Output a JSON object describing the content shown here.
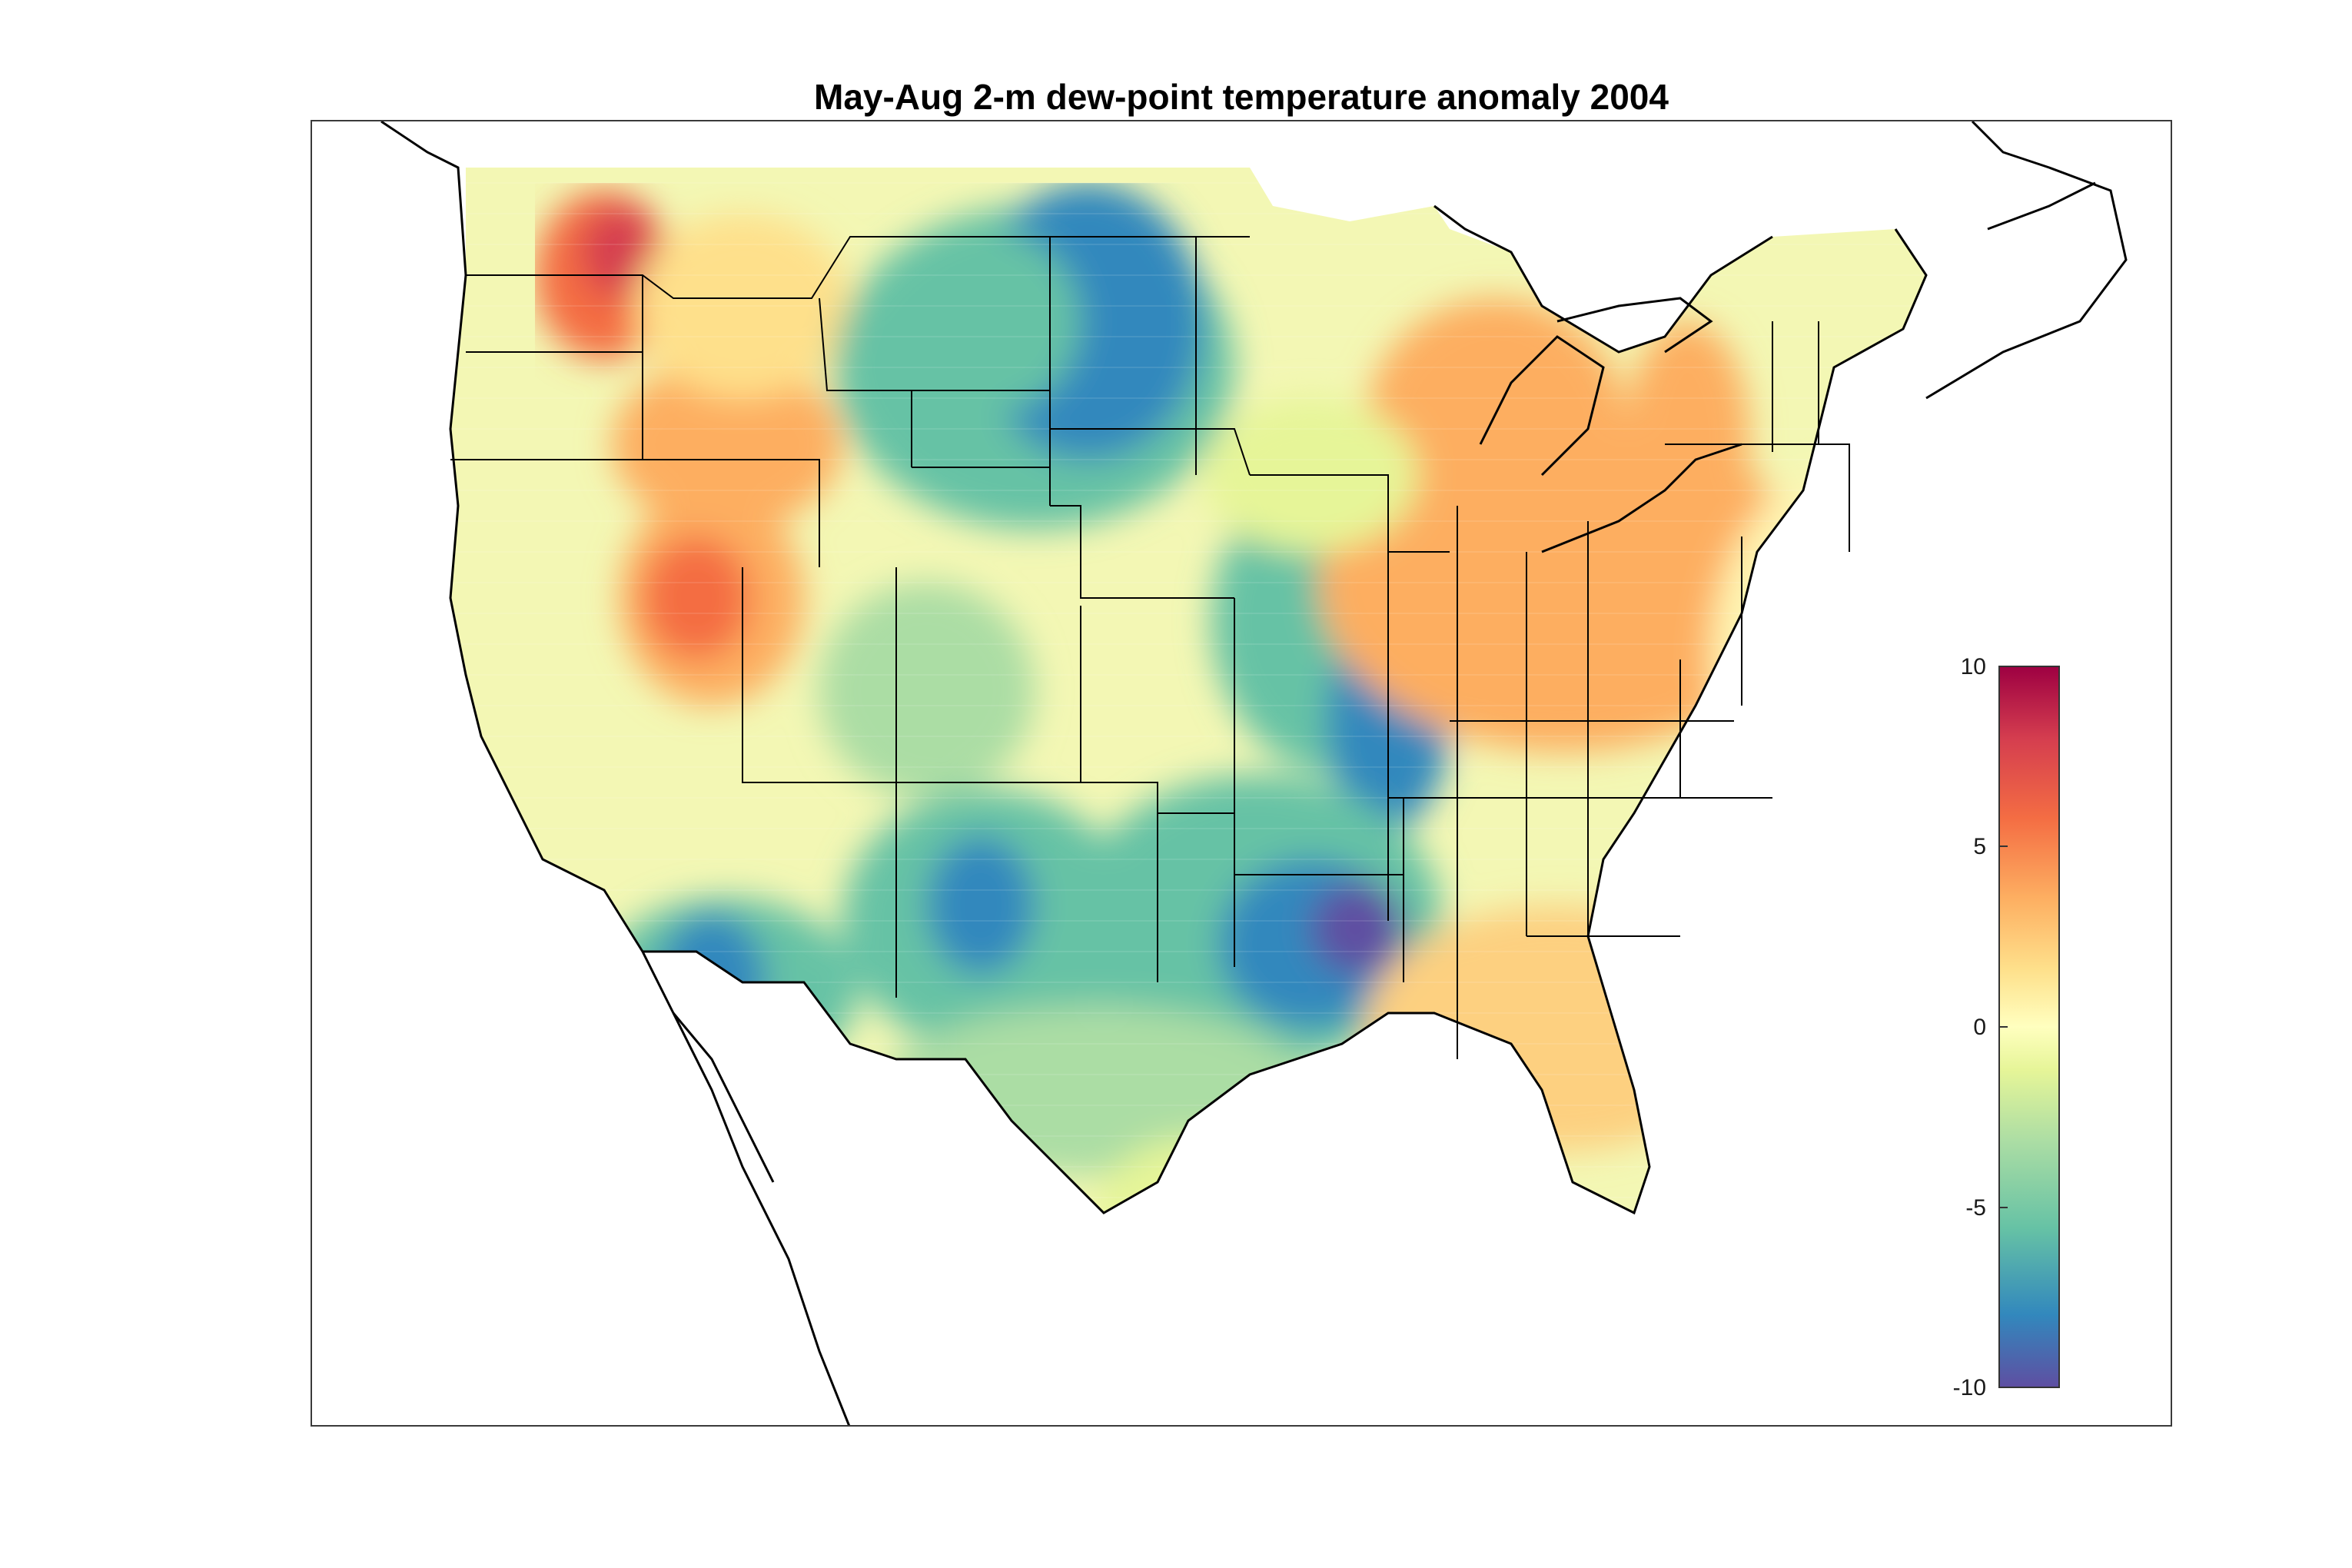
{
  "figure": {
    "title": "May-Aug 2-m dew-point temperature anomaly 2004"
  },
  "colorbar": {
    "min": -10,
    "max": 10,
    "ticks": [
      "10",
      "5",
      "0",
      "-5",
      "-10"
    ],
    "colormap": "spectral",
    "colors": [
      "#5e4fa2",
      "#3288bd",
      "#66c2a5",
      "#abdda4",
      "#e6f598",
      "#ffffbf",
      "#fee08b",
      "#fdae61",
      "#f46d43",
      "#d53e4f",
      "#9e0142"
    ]
  },
  "map": {
    "region": "contiguous United States",
    "projection": "conic",
    "overlays": [
      "coastlines",
      "state boundaries"
    ],
    "anomaly_regions": [
      {
        "area": "north-central plains (Dakotas, eastern Montana)",
        "anomaly": -8
      },
      {
        "area": "Oklahoma / north Texas",
        "anomaly": -9
      },
      {
        "area": "New Mexico / Arizona border",
        "anomaly": -7
      },
      {
        "area": "southern Arizona / California border",
        "anomaly": -9
      },
      {
        "area": "eastern Kansas / Missouri",
        "anomaly": -7
      },
      {
        "area": "northern Idaho / eastern Washington",
        "anomaly": 6
      },
      {
        "area": "northern Nevada / Utah",
        "anomaly": 4
      },
      {
        "area": "Ohio Valley / Great Lakes",
        "anomaly": 3
      },
      {
        "area": "Gulf Coast states",
        "anomaly": 2
      },
      {
        "area": "Northeast",
        "anomaly": 0.5
      }
    ]
  }
}
